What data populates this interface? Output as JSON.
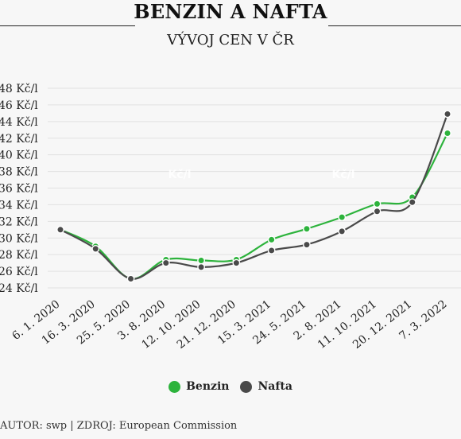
{
  "header": {
    "title": "BENZIN A NAFTA",
    "subtitle": "VÝVOJ CEN V ČR"
  },
  "footer": {
    "credit": "AUTOR: swp | ZDROJ: European Commission"
  },
  "chart_data": {
    "type": "line",
    "title": "BENZIN A NAFTA",
    "subtitle": "VÝVOJ CEN V ČR",
    "xlabel": "",
    "ylabel": "",
    "ylim": [
      24,
      48
    ],
    "yticks": [
      24,
      26,
      28,
      30,
      32,
      34,
      36,
      38,
      40,
      42,
      44,
      46,
      48
    ],
    "ytick_labels": [
      "24 Kč/l",
      "26 Kč/l",
      "28 Kč/l",
      "30 Kč/l",
      "32 Kč/l",
      "34 Kč/l",
      "36 Kč/l",
      "38 Kč/l",
      "40 Kč/l",
      "42 Kč/l",
      "44 Kč/l",
      "46 Kč/l",
      "48 Kč/l"
    ],
    "categories": [
      "6. 1. 2020",
      "16. 3. 2020",
      "25. 5. 2020",
      "3. 8. 2020",
      "12. 10. 2020",
      "21. 12. 2020",
      "15. 3. 2021",
      "24. 5. 2021",
      "2. 8. 2021",
      "11. 10. 2021",
      "20. 12. 2021",
      "7. 3. 2022"
    ],
    "series": [
      {
        "name": "Benzin",
        "color": "#2db33c",
        "values": [
          31.0,
          29.0,
          25.1,
          27.4,
          27.3,
          27.4,
          29.8,
          31.1,
          32.5,
          34.1,
          34.9,
          42.6
        ]
      },
      {
        "name": "Nafta",
        "color": "#4a4a4a",
        "values": [
          31.0,
          28.7,
          25.1,
          27.0,
          26.5,
          27.0,
          28.5,
          29.2,
          30.8,
          33.2,
          34.3,
          44.9
        ]
      }
    ],
    "watermarks": [
      "Kč/l",
      "Kč/l"
    ],
    "legend_position": "bottom-center",
    "grid": "horizontal"
  }
}
